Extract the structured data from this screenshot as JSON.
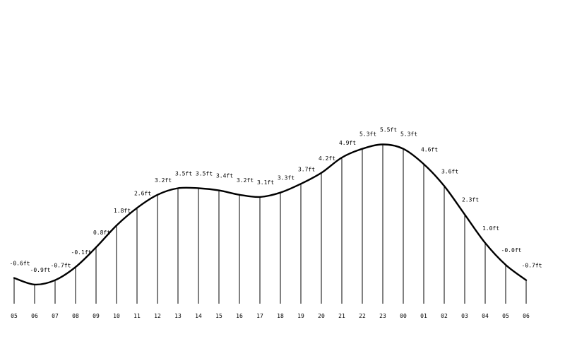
{
  "chart_data": {
    "type": "line",
    "title": "",
    "xlabel": "",
    "ylabel": "",
    "categories": [
      "05",
      "06",
      "07",
      "08",
      "09",
      "10",
      "11",
      "12",
      "13",
      "14",
      "15",
      "16",
      "17",
      "18",
      "19",
      "20",
      "21",
      "22",
      "23",
      "00",
      "01",
      "02",
      "03",
      "04",
      "05",
      "06"
    ],
    "values": [
      -0.6,
      -0.9,
      -0.7,
      -0.1,
      0.8,
      1.8,
      2.6,
      3.2,
      3.5,
      3.5,
      3.4,
      3.2,
      3.1,
      3.3,
      3.7,
      4.2,
      4.9,
      5.3,
      5.5,
      5.3,
      4.6,
      3.6,
      2.3,
      1.0,
      -0.0,
      -0.7
    ],
    "value_labels": [
      "-0.6ft",
      "-0.9ft",
      "-0.7ft",
      "-0.1ft",
      "0.8ft",
      "1.8ft",
      "2.6ft",
      "3.2ft",
      "3.5ft",
      "3.5ft",
      "3.4ft",
      "3.2ft",
      "3.1ft",
      "3.3ft",
      "3.7ft",
      "4.2ft",
      "4.9ft",
      "5.3ft",
      "5.5ft",
      "5.3ft",
      "4.6ft",
      "3.6ft",
      "2.3ft",
      "1.0ft",
      "-0.0ft",
      "-0.7ft"
    ],
    "unit": "ft",
    "grid": false,
    "line_color": "#000000"
  }
}
